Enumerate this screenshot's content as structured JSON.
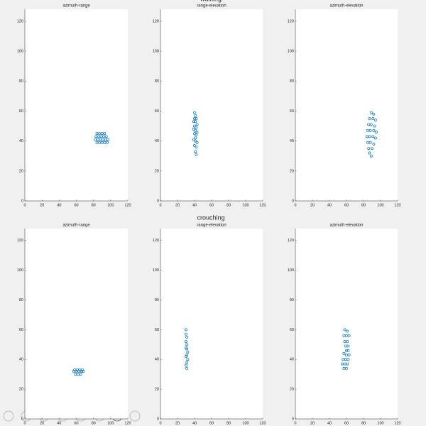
{
  "row_titles": [
    "walking",
    "crouching"
  ],
  "chart_data": [
    {
      "type": "scatter",
      "title": "azimuth-range",
      "color": "#0072bd",
      "x": [
        84,
        87,
        90,
        93,
        83,
        86,
        89,
        92,
        95,
        82,
        85,
        88,
        91,
        94,
        97,
        84,
        87,
        90,
        93,
        96
      ],
      "values": [
        45,
        45,
        45,
        45,
        43,
        43,
        43,
        43,
        43,
        41,
        41,
        41,
        41,
        41,
        41,
        39,
        39,
        39,
        39,
        39
      ],
      "xlim": [
        0,
        120
      ],
      "ylim": [
        0,
        128
      ],
      "xticks": [
        0,
        20,
        40,
        60,
        80,
        100,
        120
      ],
      "yticks": [
        0,
        20,
        40,
        60,
        80,
        100,
        120
      ]
    },
    {
      "type": "scatter",
      "title": "range-elevation",
      "color": "#0072bd",
      "x": [
        40,
        41,
        40,
        42,
        39,
        41,
        43,
        40,
        42,
        39,
        41,
        43,
        40,
        42,
        41,
        39,
        41,
        43,
        40,
        42,
        41,
        42
      ],
      "values": [
        59,
        57,
        55,
        55,
        53,
        53,
        51,
        50,
        49,
        48,
        47,
        46,
        45,
        44,
        42,
        41,
        40,
        39,
        37,
        36,
        33,
        31
      ],
      "xlim": [
        0,
        120
      ],
      "ylim": [
        0,
        128
      ],
      "xticks": [
        0,
        20,
        40,
        60,
        80,
        100,
        120
      ],
      "yticks": [
        0,
        20,
        40,
        60,
        80,
        100,
        120
      ]
    },
    {
      "type": "scatter",
      "title": "azimuth-elevation",
      "color": "#0072bd",
      "x": [
        89,
        92,
        87,
        91,
        94,
        86,
        89,
        93,
        85,
        88,
        92,
        95,
        84,
        87,
        91,
        94,
        85,
        88,
        92,
        86,
        90,
        87,
        89
      ],
      "values": [
        59,
        58,
        55,
        55,
        54,
        51,
        51,
        50,
        47,
        47,
        47,
        46,
        43,
        43,
        43,
        42,
        39,
        39,
        38,
        35,
        35,
        32,
        30
      ],
      "xlim": [
        0,
        120
      ],
      "ylim": [
        0,
        128
      ],
      "xticks": [
        0,
        20,
        40,
        60,
        80,
        100,
        120
      ],
      "yticks": [
        0,
        20,
        40,
        60,
        80,
        100,
        120
      ]
    },
    {
      "type": "scatter",
      "title": "azimuth-range",
      "color": "#0072bd",
      "x": [
        58,
        61,
        64,
        67,
        57,
        60,
        63,
        66,
        68,
        59,
        62,
        65
      ],
      "values": [
        33,
        33,
        33,
        33,
        32,
        32,
        32,
        32,
        32,
        30,
        30,
        30
      ],
      "xlim": [
        0,
        120
      ],
      "ylim": [
        0,
        128
      ],
      "xticks": [
        0,
        20,
        40,
        60,
        80,
        100,
        120
      ],
      "yticks": [
        0,
        20,
        40,
        60,
        80,
        100,
        120
      ]
    },
    {
      "type": "scatter",
      "title": "range-elevation",
      "color": "#0072bd",
      "x": [
        30,
        30,
        31,
        30,
        31,
        30,
        31,
        32,
        31,
        30,
        32,
        31,
        30,
        31
      ],
      "values": [
        60,
        57,
        55,
        52,
        50,
        48,
        47,
        45,
        43,
        42,
        40,
        38,
        36,
        34
      ],
      "xlim": [
        0,
        120
      ],
      "ylim": [
        0,
        128
      ],
      "xticks": [
        0,
        20,
        40,
        60,
        80,
        100,
        120
      ],
      "yticks": [
        0,
        20,
        40,
        60,
        80,
        100,
        120
      ]
    },
    {
      "type": "scatter",
      "title": "azimuth-elevation",
      "color": "#0072bd",
      "x": [
        58,
        61,
        57,
        60,
        63,
        58,
        61,
        62,
        59,
        60,
        62,
        57,
        60,
        63,
        56,
        59,
        62,
        55,
        58,
        61,
        57,
        60
      ],
      "values": [
        60,
        59,
        56,
        56,
        56,
        52,
        52,
        49,
        49,
        46,
        46,
        44,
        43,
        43,
        40,
        40,
        40,
        37,
        37,
        37,
        34,
        34
      ],
      "xlim": [
        0,
        120
      ],
      "ylim": [
        0,
        128
      ],
      "xticks": [
        0,
        20,
        40,
        60,
        80,
        100,
        120
      ],
      "yticks": [
        0,
        20,
        40,
        60,
        80,
        100,
        120
      ]
    }
  ]
}
